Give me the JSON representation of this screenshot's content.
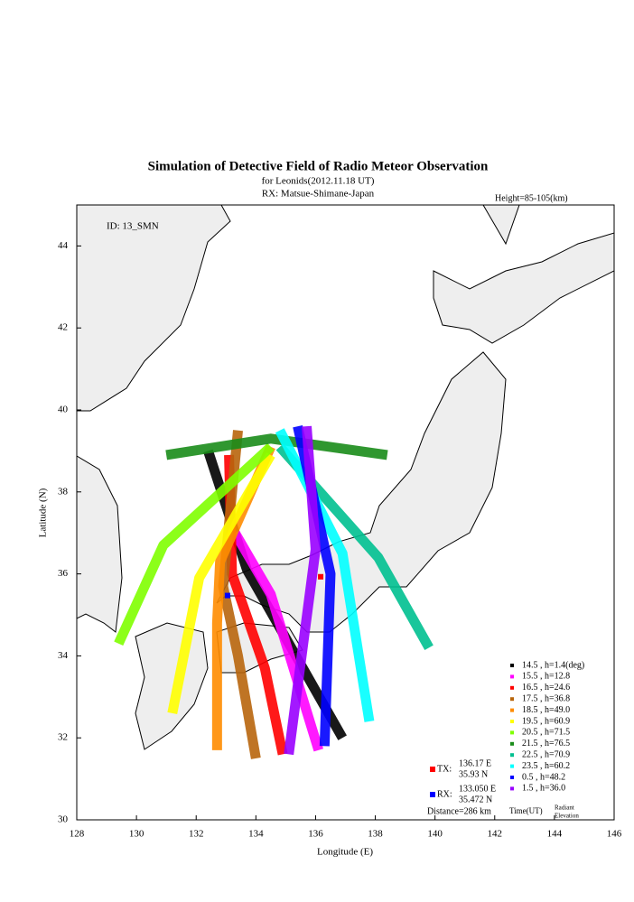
{
  "chart_data": {
    "type": "line",
    "title": "Simulation of Detective Field of Radio Meteor Observation",
    "subtitle": "for Leonids(2012.11.18 UT)",
    "subtitle2": "RX: Matsue-Shimane-Japan",
    "height_note": "Height=85-105(km)",
    "id_note": "ID: 13_SMN",
    "xlabel": "Longitude (E)",
    "ylabel": "Latitude (N)",
    "xlim": [
      128,
      146
    ],
    "ylim": [
      30,
      45
    ],
    "xticks": [
      128,
      130,
      132,
      134,
      136,
      138,
      140,
      142,
      144,
      146
    ],
    "yticks": [
      30,
      32,
      34,
      36,
      38,
      40,
      42,
      44
    ],
    "series": [
      {
        "name": "14.5 , h=1.4(deg)",
        "color": "#000000",
        "x": [
          132.4,
          133.7,
          136.9
        ],
        "values": [
          39.0,
          36.1,
          32.0
        ]
      },
      {
        "name": "15.5 , h=12.8",
        "color": "#ff00ff",
        "x": [
          133.3,
          134.5,
          136.1
        ],
        "values": [
          37.0,
          35.5,
          31.7
        ]
      },
      {
        "name": "16.5 , h=24.6",
        "color": "#ff0000",
        "x": [
          133.1,
          133.2,
          134.3,
          134.9
        ],
        "values": [
          38.9,
          36.0,
          33.7,
          31.6
        ]
      },
      {
        "name": "17.5 , h=36.8",
        "color": "#b8650c",
        "x": [
          133.4,
          132.9,
          133.4,
          134.0
        ],
        "values": [
          39.5,
          35.7,
          34.0,
          31.5
        ]
      },
      {
        "name": "18.5 , h=49.0",
        "color": "#ff8c00",
        "x": [
          134.5,
          132.8,
          132.7,
          132.7
        ],
        "values": [
          39.1,
          36.3,
          34.8,
          31.7
        ]
      },
      {
        "name": "19.5 , h=60.9",
        "color": "#ffff00",
        "x": [
          134.5,
          132.1,
          131.2
        ],
        "values": [
          38.9,
          35.9,
          32.6
        ]
      },
      {
        "name": "20.5 , h=71.5",
        "color": "#80ff00",
        "x": [
          134.5,
          130.9,
          129.4
        ],
        "values": [
          39.1,
          36.7,
          34.3
        ]
      },
      {
        "name": "21.5 , h=76.5",
        "color": "#1a8c1a",
        "x": [
          131.0,
          134.5,
          138.4
        ],
        "values": [
          38.9,
          39.3,
          38.9
        ]
      },
      {
        "name": "22.5 , h=70.9",
        "color": "#00c090",
        "x": [
          134.8,
          138.1,
          139.8
        ],
        "values": [
          39.1,
          36.4,
          34.2
        ]
      },
      {
        "name": "23.5 , h=60.2",
        "color": "#00ffff",
        "x": [
          134.8,
          136.9,
          137.8
        ],
        "values": [
          39.5,
          36.5,
          32.4
        ]
      },
      {
        "name": "0.5 , h=48.2",
        "color": "#0000ff",
        "x": [
          135.4,
          136.5,
          136.3
        ],
        "values": [
          39.6,
          36.0,
          31.8
        ]
      },
      {
        "name": "1.5 , h=36.0",
        "color": "#9900ff",
        "x": [
          135.7,
          136.0,
          135.1
        ],
        "values": [
          39.6,
          36.6,
          31.6
        ]
      }
    ],
    "stations": [
      {
        "label": "TX:",
        "lon_text": "136.17 E",
        "lat_text": "35.93 N",
        "lon": 136.17,
        "lat": 35.93,
        "color": "#ff0000"
      },
      {
        "label": "RX:",
        "lon_text": "133.050 E",
        "lat_text": "35.472 N",
        "lon": 133.05,
        "lat": 35.472,
        "color": "#0000ff"
      }
    ],
    "distance": "Distance=286 km",
    "time_label": "Time(UT)",
    "elevation_label": [
      "Radiant",
      "Elevation"
    ]
  }
}
